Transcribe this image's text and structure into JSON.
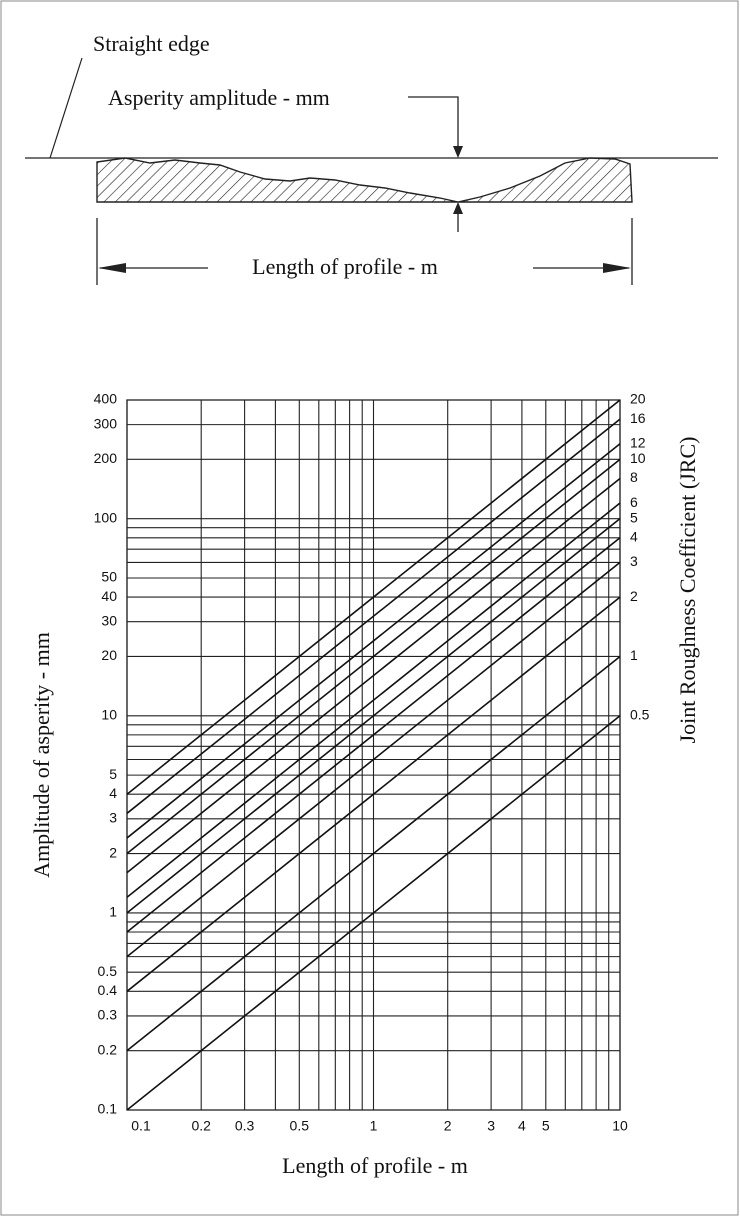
{
  "diagram": {
    "straight_edge_label": "Straight edge",
    "amplitude_label": "Asperity amplitude - mm",
    "length_label": "Length of profile - m"
  },
  "chart_data": {
    "type": "line",
    "x_label": "Length of profile - m",
    "y_label": "Amplitude of asperity - mm",
    "y2_label": "Joint Roughness Coefficient (JRC)",
    "log_x": true,
    "log_y": true,
    "grid": true,
    "xlim": [
      0.1,
      10
    ],
    "ylim": [
      0.1,
      400
    ],
    "xticks": [
      0.1,
      0.2,
      0.3,
      0.5,
      1,
      2,
      3,
      4,
      5,
      10
    ],
    "xminor": [
      0.4,
      0.6,
      0.7,
      0.8,
      0.9,
      6,
      7,
      8,
      9
    ],
    "yticks": [
      0.1,
      0.2,
      0.3,
      0.4,
      0.5,
      1,
      2,
      3,
      4,
      5,
      10,
      20,
      30,
      40,
      50,
      100,
      200,
      300,
      400
    ],
    "yminor": [
      0.6,
      0.7,
      0.8,
      0.9,
      6,
      7,
      8,
      9,
      60,
      70,
      80,
      90
    ],
    "x": [
      0.1,
      10
    ],
    "series": [
      {
        "name": "20",
        "color": "#111111",
        "values": [
          4,
          400
        ]
      },
      {
        "name": "16",
        "color": "#111111",
        "values": [
          3.2,
          320
        ]
      },
      {
        "name": "12",
        "color": "#111111",
        "values": [
          2.4,
          240
        ]
      },
      {
        "name": "10",
        "color": "#111111",
        "values": [
          2,
          200
        ]
      },
      {
        "name": "8",
        "color": "#111111",
        "values": [
          1.6,
          160
        ]
      },
      {
        "name": "6",
        "color": "#111111",
        "values": [
          1.2,
          120
        ]
      },
      {
        "name": "5",
        "color": "#111111",
        "values": [
          1,
          100
        ]
      },
      {
        "name": "4",
        "color": "#111111",
        "values": [
          0.8,
          80
        ]
      },
      {
        "name": "3",
        "color": "#111111",
        "values": [
          0.6,
          60
        ]
      },
      {
        "name": "2",
        "color": "#111111",
        "values": [
          0.4,
          40
        ]
      },
      {
        "name": "1",
        "color": "#111111",
        "values": [
          0.2,
          20
        ]
      },
      {
        "name": "0.5",
        "color": "#111111",
        "values": [
          0.1,
          10
        ]
      }
    ]
  }
}
